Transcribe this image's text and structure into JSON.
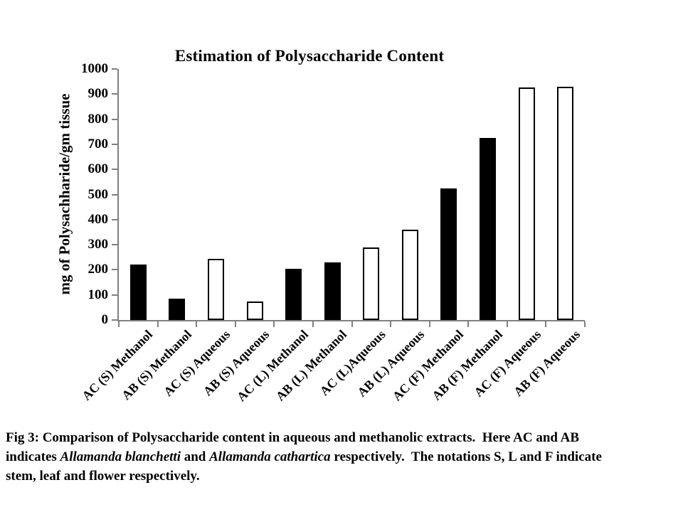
{
  "chart_data": {
    "type": "bar",
    "title": "Estimation of Polysaccharide Content",
    "ylabel": "mg of Polysachharide/gm tissue",
    "xlabel": "",
    "categories": [
      "AC (S) Methanol",
      "AB (S) Methanol",
      "AC (S) Aqueous",
      "AB (S) Aqueous",
      "AC (L) Methanol",
      "AB (L) Methanol",
      "AC (L)Aqueous",
      "AB (L) Aqueous",
      "AC (F) Methanol",
      "AB (F) Methanol",
      "AC (F) Aqueous",
      "AB (F) Aqueous"
    ],
    "values": [
      220,
      85,
      245,
      75,
      205,
      230,
      290,
      360,
      525,
      725,
      925,
      930
    ],
    "bar_fills": [
      "black",
      "black",
      "white",
      "white",
      "black",
      "black",
      "white",
      "white",
      "black",
      "black",
      "white",
      "white"
    ],
    "ylim": [
      0,
      1000
    ],
    "yticks": [
      0,
      100,
      200,
      300,
      400,
      500,
      600,
      700,
      800,
      900,
      1000
    ],
    "grid": false,
    "legend": "none",
    "layout_hints": {
      "x_labels_rotation_deg": 45,
      "bar_style_meaning": "Methanol extracts = solid black bars, Aqueous extracts = white bars with black outline"
    },
    "colors": {
      "axis": "#808080",
      "bar_fill_methanol": "#000000",
      "bar_fill_aqueous": "#ffffff",
      "bar_edge": "#000000",
      "text": "#000000",
      "background": "#ffffff"
    }
  },
  "figure": {
    "caption_lines": [
      [
        {
          "text": "Fig 3: Comparison of Polysaccharide content in aqueous and methanolic extracts.  Here AC and AB",
          "italic": false
        }
      ],
      [
        {
          "text": "indicates ",
          "italic": false
        },
        {
          "text": "Allamanda blanchetti",
          "italic": true
        },
        {
          "text": " and ",
          "italic": false
        },
        {
          "text": "Allamanda cathartica",
          "italic": true
        },
        {
          "text": " respectively.  The notations S, L and F indicate",
          "italic": false
        }
      ],
      [
        {
          "text": "stem, leaf and flower respectively.",
          "italic": false
        }
      ]
    ]
  }
}
